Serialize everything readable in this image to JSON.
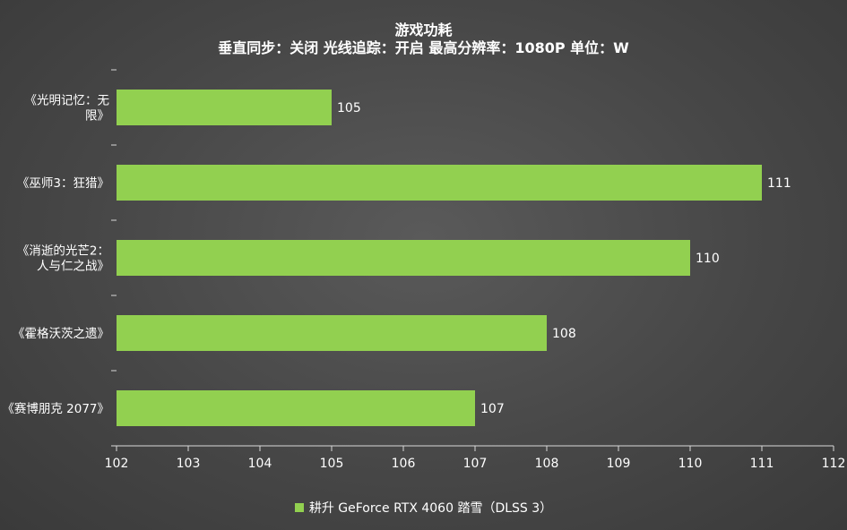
{
  "chart_data": {
    "type": "bar",
    "orientation": "horizontal",
    "title": "游戏功耗",
    "subtitle": "垂直同步：关闭  光线追踪：开启  最高分辨率：1080P   单位：W",
    "categories": [
      [
        "《光明记忆：无",
        "限》"
      ],
      [
        "《巫师3：狂猎》"
      ],
      [
        "《消逝的光芒2：",
        "人与仁之战》"
      ],
      [
        "《霍格沃茨之遗》"
      ],
      [
        "《赛博朋克 2077》"
      ]
    ],
    "series": [
      {
        "name": "耕升 GeForce RTX 4060 踏雪（DLSS 3）",
        "values": [
          105,
          111,
          110,
          108,
          107
        ]
      }
    ],
    "xlim": [
      102,
      112
    ],
    "xticks": [
      102,
      103,
      104,
      105,
      106,
      107,
      108,
      109,
      110,
      111,
      112
    ],
    "grid": false,
    "legend_position": "bottom",
    "bar_color": "#92d050"
  }
}
